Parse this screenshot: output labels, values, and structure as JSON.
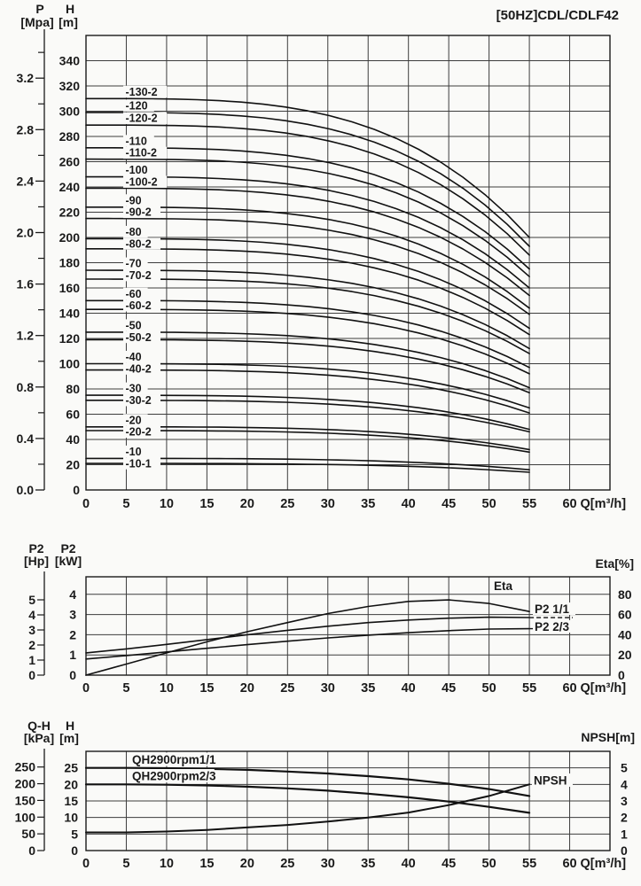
{
  "title": "[50HZ]CDL/CDLF42",
  "colors": {
    "ink": "#1a1a1a",
    "grid": "#3d3d3d",
    "curve": "#111111",
    "background": "#fafaf8"
  },
  "x_axis": {
    "unit": "Q[m³/h]",
    "ticks": [
      0,
      5,
      10,
      15,
      20,
      25,
      30,
      35,
      40,
      45,
      50,
      55,
      60
    ],
    "curve_end_q": 55,
    "grid_max": 65
  },
  "chart_data": [
    {
      "id": "head_capacity",
      "type": "line",
      "p_axis": {
        "name": "P",
        "unit": "[Mpa]",
        "ticks": [
          "0.0",
          "0.4",
          "0.8",
          "1.2",
          "1.6",
          "2.0",
          "2.4",
          "2.8",
          "3.2"
        ]
      },
      "h_axis": {
        "name": "H",
        "unit": "[m]",
        "ticks": [
          0,
          20,
          40,
          60,
          80,
          100,
          120,
          140,
          160,
          180,
          200,
          220,
          240,
          260,
          280,
          300,
          320,
          340
        ],
        "max": 360
      },
      "curves": [
        {
          "label": "-130-2",
          "h_q0": 310,
          "h_q55": 200
        },
        {
          "label": "-120",
          "h_q0": 299,
          "h_q55": 193
        },
        {
          "label": "-120-2",
          "h_q0": 289,
          "h_q55": 186
        },
        {
          "label": "-110",
          "h_q0": 271,
          "h_q55": 175
        },
        {
          "label": "-110-2",
          "h_q0": 262,
          "h_q55": 169
        },
        {
          "label": "-100",
          "h_q0": 248,
          "h_q55": 160
        },
        {
          "label": "-100-2",
          "h_q0": 239,
          "h_q55": 154
        },
        {
          "label": "-90",
          "h_q0": 224,
          "h_q55": 144
        },
        {
          "label": "-90-2",
          "h_q0": 215,
          "h_q55": 139
        },
        {
          "label": "-80",
          "h_q0": 199,
          "h_q55": 128
        },
        {
          "label": "-80-2",
          "h_q0": 191,
          "h_q55": 123
        },
        {
          "label": "-70",
          "h_q0": 174,
          "h_q55": 112
        },
        {
          "label": "-70-2",
          "h_q0": 167,
          "h_q55": 108
        },
        {
          "label": "-60",
          "h_q0": 150,
          "h_q55": 97
        },
        {
          "label": "-60-2",
          "h_q0": 143,
          "h_q55": 92
        },
        {
          "label": "-50",
          "h_q0": 125,
          "h_q55": 81
        },
        {
          "label": "-50-2",
          "h_q0": 119,
          "h_q55": 77
        },
        {
          "label": "-40",
          "h_q0": 100,
          "h_q55": 65
        },
        {
          "label": "-40-2",
          "h_q0": 95,
          "h_q55": 61
        },
        {
          "label": "-30",
          "h_q0": 75,
          "h_q55": 48
        },
        {
          "label": "-30-2",
          "h_q0": 71,
          "h_q55": 46
        },
        {
          "label": "-20",
          "h_q0": 50,
          "h_q55": 32
        },
        {
          "label": "-20-2",
          "h_q0": 47,
          "h_q55": 30
        },
        {
          "label": "-10",
          "h_q0": 25,
          "h_q55": 16
        },
        {
          "label": "-10-1",
          "h_q0": 21,
          "h_q55": 14
        }
      ]
    },
    {
      "id": "power_efficiency",
      "type": "line",
      "hp_axis": {
        "name": "P2",
        "unit": "[Hp]",
        "ticks": [
          0,
          1,
          2,
          3,
          4,
          5
        ]
      },
      "kw_axis": {
        "name": "P2",
        "unit": "[kW]",
        "ticks": [
          0,
          1,
          2,
          3,
          4
        ]
      },
      "eta_axis": {
        "label": "Eta[%]",
        "ticks": [
          0,
          20,
          40,
          60,
          80
        ]
      },
      "labels": {
        "eta": "Eta",
        "p2_full": "P2 1/1",
        "p2_reduced": "P2 2/3"
      },
      "q": [
        0,
        5,
        10,
        15,
        20,
        25,
        30,
        35,
        40,
        45,
        50,
        55
      ],
      "series": [
        {
          "name": "Eta",
          "unit": "%",
          "values": [
            0,
            11,
            22,
            33,
            43,
            52,
            61,
            68,
            73,
            74.5,
            71,
            63
          ]
        },
        {
          "name": "P2 1/1",
          "unit": "kW",
          "values": [
            1.1,
            1.3,
            1.52,
            1.76,
            2.0,
            2.22,
            2.42,
            2.6,
            2.73,
            2.82,
            2.87,
            2.85
          ]
        },
        {
          "name": "P2 2/3",
          "unit": "kW",
          "values": [
            0.8,
            0.97,
            1.15,
            1.33,
            1.51,
            1.68,
            1.84,
            1.98,
            2.1,
            2.2,
            2.28,
            2.3
          ]
        }
      ]
    },
    {
      "id": "qh_npsh",
      "type": "line",
      "qh_axis": {
        "name": "Q-H",
        "unit": "[kPa]",
        "ticks": [
          0,
          50,
          100,
          150,
          200,
          250
        ]
      },
      "h_axis": {
        "name": "H",
        "unit": "[m]",
        "ticks": [
          0,
          5,
          10,
          15,
          20,
          25
        ]
      },
      "npsh_axis": {
        "label": "NPSH[m]",
        "ticks": [
          0,
          1,
          2,
          3,
          4,
          5
        ]
      },
      "labels": {
        "qh_full": "QH2900rpm1/1",
        "qh_reduced": "QH2900rpm2/3",
        "npsh": "NPSH"
      },
      "q": [
        0,
        5,
        10,
        15,
        20,
        25,
        30,
        35,
        40,
        45,
        50,
        55
      ],
      "series": [
        {
          "name": "QH2900rpm1/1",
          "unit": "m",
          "values": [
            25,
            25,
            24.9,
            24.7,
            24.4,
            23.9,
            23.3,
            22.5,
            21.5,
            20.2,
            18.6,
            16.5
          ]
        },
        {
          "name": "QH2900rpm2/3",
          "unit": "m",
          "values": [
            20,
            20,
            19.9,
            19.7,
            19.3,
            18.8,
            18.1,
            17.2,
            16.1,
            14.8,
            13.2,
            11.4
          ]
        },
        {
          "name": "NPSH",
          "unit": "m",
          "values": [
            1.1,
            1.1,
            1.15,
            1.25,
            1.4,
            1.55,
            1.75,
            2.0,
            2.3,
            2.75,
            3.3,
            4.0
          ]
        }
      ]
    }
  ]
}
